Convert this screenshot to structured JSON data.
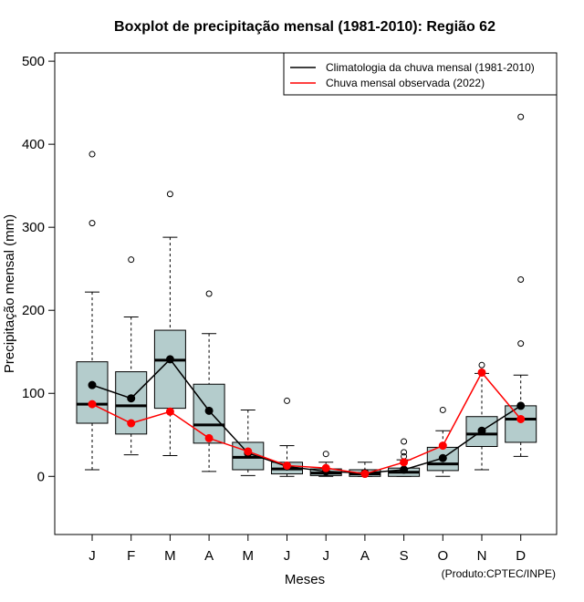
{
  "chart_data": {
    "type": "boxplot",
    "title": "Boxplot de precipitação mensal (1981-2010): Região 62",
    "xlabel": "Meses",
    "ylabel": "Precipitação mensal (mm)",
    "ylim": [
      -70,
      510
    ],
    "yticks": [
      0,
      100,
      200,
      300,
      400,
      500
    ],
    "categories": [
      "J",
      "F",
      "M",
      "A",
      "M",
      "J",
      "J",
      "A",
      "S",
      "O",
      "N",
      "D"
    ],
    "boxes": [
      {
        "whisker_low": 8,
        "q1": 64,
        "median": 87,
        "q3": 138,
        "whisker_high": 222,
        "outliers": [
          305,
          388
        ]
      },
      {
        "whisker_low": 26,
        "q1": 51,
        "median": 85,
        "q3": 126,
        "whisker_high": 192,
        "outliers": [
          261
        ]
      },
      {
        "whisker_low": 25,
        "q1": 82,
        "median": 140,
        "q3": 176,
        "whisker_high": 288,
        "outliers": [
          340
        ]
      },
      {
        "whisker_low": 6,
        "q1": 40,
        "median": 62,
        "q3": 111,
        "whisker_high": 172,
        "outliers": [
          220
        ]
      },
      {
        "whisker_low": 1,
        "q1": 8,
        "median": 23,
        "q3": 41,
        "whisker_high": 80,
        "outliers": []
      },
      {
        "whisker_low": 0,
        "q1": 3,
        "median": 9,
        "q3": 17,
        "whisker_high": 37,
        "outliers": [
          91
        ]
      },
      {
        "whisker_low": 0,
        "q1": 1,
        "median": 4,
        "q3": 9,
        "whisker_high": 17,
        "outliers": [
          27
        ]
      },
      {
        "whisker_low": 0,
        "q1": 0,
        "median": 3,
        "q3": 8,
        "whisker_high": 17,
        "outliers": []
      },
      {
        "whisker_low": 0,
        "q1": 0,
        "median": 5,
        "q3": 10,
        "whisker_high": 20,
        "outliers": [
          24,
          29,
          42
        ]
      },
      {
        "whisker_low": 0,
        "q1": 7,
        "median": 15,
        "q3": 35,
        "whisker_high": 55,
        "outliers": [
          80
        ]
      },
      {
        "whisker_low": 8,
        "q1": 36,
        "median": 51,
        "q3": 72,
        "whisker_high": 124,
        "outliers": [
          134
        ]
      },
      {
        "whisker_low": 24,
        "q1": 41,
        "median": 69,
        "q3": 85,
        "whisker_high": 122,
        "outliers": [
          160,
          237,
          433
        ]
      }
    ],
    "series": [
      {
        "name": "Climatologia da chuva mensal (1981-2010)",
        "color": "#000000",
        "values": [
          110,
          94,
          141,
          79,
          28,
          12,
          6,
          4,
          8,
          22,
          55,
          85
        ]
      },
      {
        "name": "Chuva mensal observada (2022)",
        "color": "#ff0000",
        "values": [
          87,
          64,
          78,
          46,
          30,
          13,
          10,
          3,
          17,
          37,
          125,
          69
        ]
      }
    ],
    "legend_position": "top-right",
    "box_fill": "#b4cccc",
    "credit": "(Produto:CPTEC/INPE)"
  }
}
